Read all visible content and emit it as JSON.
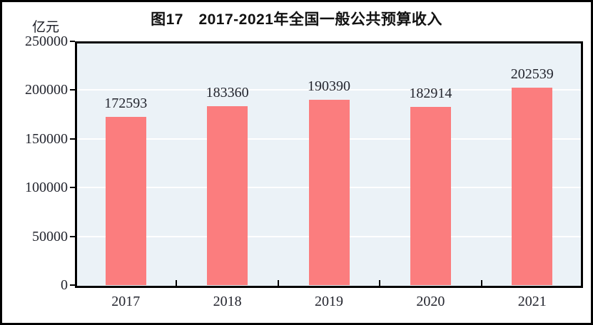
{
  "chart_data": {
    "type": "bar",
    "title": "图17　2017-2021年全国一般公共预算收入",
    "unit_label": "亿元",
    "xlabel": "",
    "ylabel": "亿元",
    "categories": [
      "2017",
      "2018",
      "2019",
      "2020",
      "2021"
    ],
    "values": [
      172593,
      183360,
      190390,
      182914,
      202539
    ],
    "ylim": [
      0,
      250000
    ],
    "yticks": [
      0,
      50000,
      100000,
      150000,
      200000,
      250000
    ],
    "grid": true,
    "legend": "none",
    "colors": {
      "bar_fill": "#FB7D7E",
      "plot_background": "#EBF2F7",
      "gridline": "#FFFFFF",
      "axis": "#000000",
      "text": "#23252E"
    }
  }
}
